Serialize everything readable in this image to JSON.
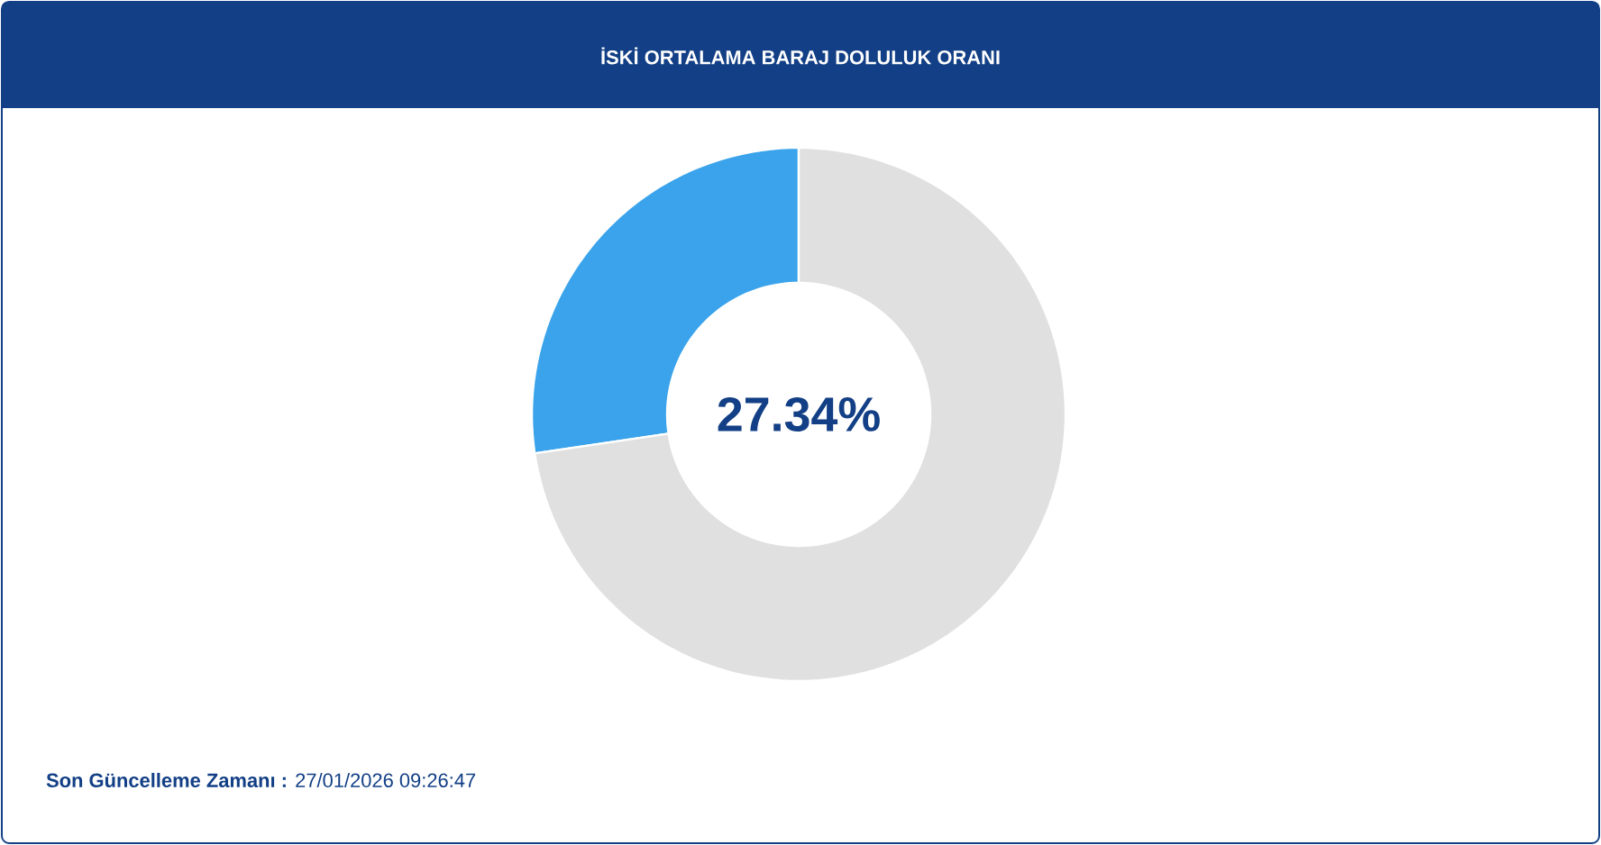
{
  "chart_data": {
    "type": "donut",
    "title": "İSKİ ORTALAMA BARAJ DOLULUK ORANI",
    "categories": [
      null,
      null
    ],
    "values": [
      27.34,
      72.66
    ],
    "colors": [
      "#3aa3eb",
      "#e0e0e0"
    ],
    "annotations": [
      "27.34%",
      "**Son Güncelleme Zamanı :** 27/01/2026 09:26:47"
    ]
  }
}
